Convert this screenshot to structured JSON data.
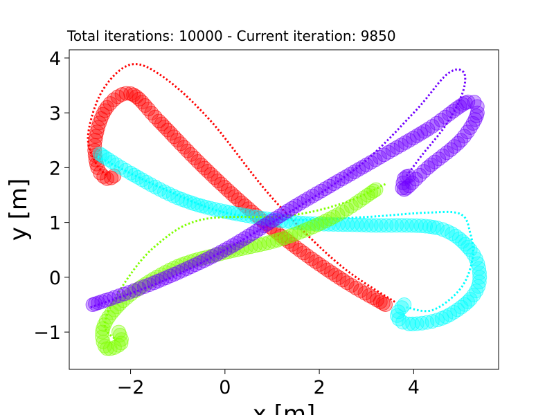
{
  "chart_data": {
    "type": "line",
    "title": "Total iterations: 10000 - Current iteration: 9850",
    "xlabel": "x [m]",
    "ylabel": "y [m]",
    "xlim": [
      -3.3,
      5.8
    ],
    "ylim": [
      -1.68,
      4.15
    ],
    "xticks": [
      -2,
      0,
      2,
      4
    ],
    "xtick_labels": [
      "−2",
      "0",
      "2",
      "4"
    ],
    "yticks": [
      -1,
      0,
      1,
      2,
      3,
      4
    ],
    "ytick_labels": [
      "−1",
      "0",
      "1",
      "2",
      "3",
      "4"
    ],
    "grid": false,
    "series": [
      {
        "color": "#ff0000",
        "trail": [
          [
            3.4,
            -0.5
          ],
          [
            2.5,
            -0.05
          ],
          [
            1.5,
            0.55
          ],
          [
            0.5,
            1.25
          ],
          [
            -0.5,
            2.05
          ],
          [
            -1.4,
            2.85
          ],
          [
            -2.0,
            3.35
          ],
          [
            -2.5,
            3.1
          ],
          [
            -2.75,
            2.5
          ],
          [
            -2.7,
            2.0
          ],
          [
            -2.5,
            1.8
          ],
          [
            -2.35,
            1.85
          ]
        ],
        "dotted": [
          [
            3.6,
            -0.45
          ],
          [
            2.4,
            0.25
          ],
          [
            1.0,
            1.45
          ],
          [
            -0.3,
            2.85
          ],
          [
            -1.3,
            3.65
          ],
          [
            -2.0,
            3.88
          ],
          [
            -2.6,
            3.4
          ],
          [
            -2.9,
            2.6
          ],
          [
            -2.75,
            2.1
          ],
          [
            -2.5,
            1.85
          ]
        ]
      },
      {
        "color": "#00ffff",
        "trail": [
          [
            -2.65,
            2.25
          ],
          [
            -2.0,
            1.9
          ],
          [
            -1.0,
            1.45
          ],
          [
            0.0,
            1.2
          ],
          [
            1.5,
            1.0
          ],
          [
            3.0,
            0.95
          ],
          [
            4.5,
            0.9
          ],
          [
            5.2,
            0.5
          ],
          [
            5.4,
            0.0
          ],
          [
            5.2,
            -0.4
          ],
          [
            4.6,
            -0.75
          ],
          [
            3.9,
            -0.85
          ],
          [
            3.65,
            -0.7
          ],
          [
            3.8,
            -0.5
          ]
        ],
        "dotted": [
          [
            -2.7,
            2.2
          ],
          [
            -1.4,
            1.65
          ],
          [
            0.0,
            1.18
          ],
          [
            1.5,
            1.05
          ],
          [
            3.0,
            1.1
          ],
          [
            4.3,
            1.18
          ],
          [
            5.0,
            1.15
          ],
          [
            5.2,
            0.8
          ],
          [
            5.25,
            0.35
          ],
          [
            5.0,
            -0.2
          ],
          [
            4.4,
            -0.6
          ],
          [
            3.85,
            -0.55
          ]
        ]
      },
      {
        "color": "#7fff00",
        "trail": [
          [
            3.2,
            1.6
          ],
          [
            2.3,
            1.1
          ],
          [
            1.2,
            0.7
          ],
          [
            0.0,
            0.45
          ],
          [
            -1.0,
            0.2
          ],
          [
            -1.9,
            -0.25
          ],
          [
            -2.4,
            -0.65
          ],
          [
            -2.6,
            -1.0
          ],
          [
            -2.5,
            -1.3
          ],
          [
            -2.2,
            -1.2
          ],
          [
            -2.25,
            -1.0
          ]
        ],
        "dotted": [
          [
            3.4,
            1.7
          ],
          [
            2.5,
            1.35
          ],
          [
            1.3,
            1.12
          ],
          [
            -0.5,
            1.05
          ],
          [
            -1.5,
            0.55
          ],
          [
            -2.2,
            -0.2
          ],
          [
            -2.55,
            -0.85
          ],
          [
            -2.3,
            -1.15
          ]
        ]
      },
      {
        "color": "#7000ff",
        "trail": [
          [
            -2.8,
            -0.5
          ],
          [
            -1.5,
            -0.1
          ],
          [
            0.0,
            0.5
          ],
          [
            1.5,
            1.3
          ],
          [
            3.0,
            2.05
          ],
          [
            4.3,
            2.7
          ],
          [
            5.15,
            3.2
          ],
          [
            5.35,
            3.0
          ],
          [
            5.0,
            2.5
          ],
          [
            4.3,
            2.0
          ],
          [
            3.8,
            1.6
          ],
          [
            3.8,
            1.8
          ],
          [
            3.9,
            1.85
          ]
        ],
        "dotted": [
          [
            -2.85,
            -0.55
          ],
          [
            -1.0,
            0.05
          ],
          [
            1.0,
            1.0
          ],
          [
            2.8,
            2.0
          ],
          [
            4.0,
            3.0
          ],
          [
            4.7,
            3.7
          ],
          [
            5.05,
            3.75
          ],
          [
            5.05,
            3.4
          ],
          [
            4.7,
            2.8
          ],
          [
            4.15,
            2.2
          ],
          [
            3.85,
            1.85
          ]
        ]
      }
    ]
  }
}
